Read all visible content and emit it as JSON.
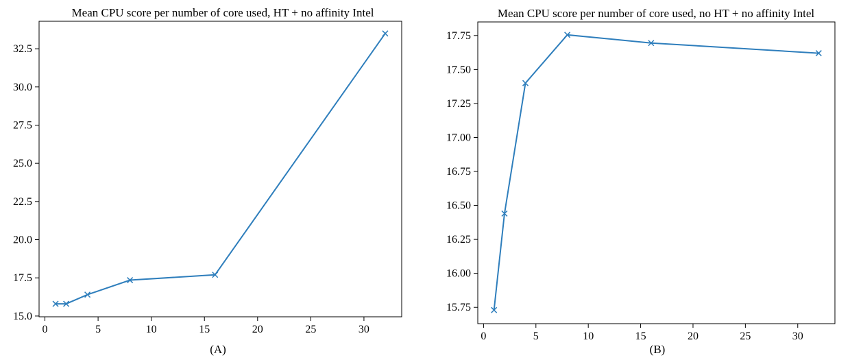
{
  "colors": {
    "series": "#2e7ebc"
  },
  "chart_data": [
    {
      "type": "line",
      "title": "Mean CPU score per number of core used, HT + no affinity Intel",
      "caption": "(A)",
      "xlabel": "",
      "ylabel": "",
      "x": [
        1,
        2,
        4,
        8,
        16,
        32
      ],
      "series": [
        {
          "values": [
            15.8,
            15.8,
            16.4,
            17.35,
            17.7,
            33.5
          ],
          "marker": "x"
        }
      ],
      "xlim": [
        -0.55,
        33.55
      ],
      "ylim": [
        14.95,
        34.3
      ],
      "xticks": [
        0,
        5,
        10,
        15,
        20,
        25,
        30
      ],
      "xtick_labels": [
        "0",
        "5",
        "10",
        "15",
        "20",
        "25",
        "30"
      ],
      "yticks": [
        15.0,
        17.5,
        20.0,
        22.5,
        25.0,
        27.5,
        30.0,
        32.5
      ],
      "ytick_labels": [
        "15.0",
        "17.5",
        "20.0",
        "22.5",
        "25.0",
        "27.5",
        "30.0",
        "32.5"
      ],
      "grid": false,
      "legend": "none"
    },
    {
      "type": "line",
      "title": "Mean CPU score per number of core used, no HT + no affinity Intel",
      "caption": "(B)",
      "xlabel": "",
      "ylabel": "",
      "x": [
        1,
        2,
        4,
        8,
        16,
        32
      ],
      "series": [
        {
          "values": [
            15.73,
            16.44,
            17.4,
            17.755,
            17.695,
            17.62
          ],
          "marker": "x"
        }
      ],
      "xlim": [
        -0.55,
        33.55
      ],
      "ylim": [
        15.63,
        17.85
      ],
      "xticks": [
        0,
        5,
        10,
        15,
        20,
        25,
        30
      ],
      "xtick_labels": [
        "0",
        "5",
        "10",
        "15",
        "20",
        "25",
        "30"
      ],
      "yticks": [
        15.75,
        16.0,
        16.25,
        16.5,
        16.75,
        17.0,
        17.25,
        17.5,
        17.75
      ],
      "ytick_labels": [
        "15.75",
        "16.00",
        "16.25",
        "16.50",
        "16.75",
        "17.00",
        "17.25",
        "17.50",
        "17.75"
      ],
      "grid": false,
      "legend": "none"
    }
  ]
}
